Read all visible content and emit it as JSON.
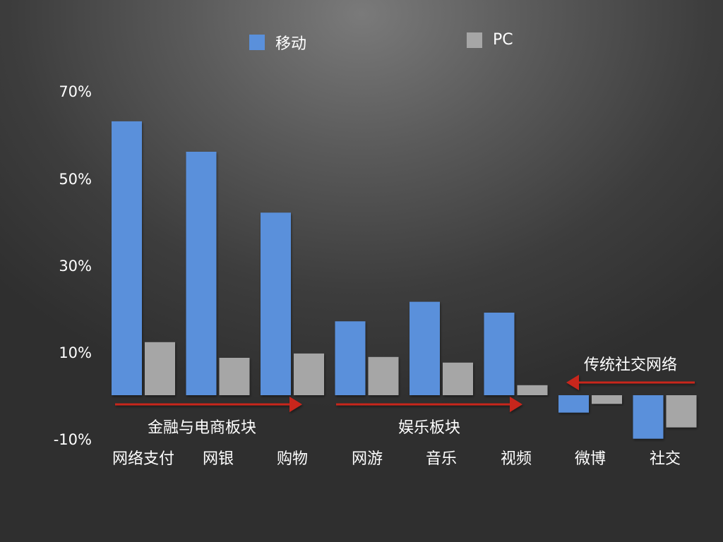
{
  "legend": {
    "mobile_label": "移动",
    "pc_label": "PC"
  },
  "colors": {
    "mobile": "#5a90db",
    "pc": "#a6a6a6",
    "arrow": "#c8281e",
    "axis": "#ffffff"
  },
  "annotations": {
    "finance": "金融与电商板块",
    "entertainment": "娱乐板块",
    "social": "传统社交网络"
  },
  "chart_data": {
    "type": "bar",
    "categories": [
      "网络支付",
      "网银",
      "购物",
      "网游",
      "音乐",
      "视频",
      "微博",
      "社交"
    ],
    "series": [
      {
        "name": "移动",
        "values": [
          63,
          56,
          42,
          17,
          21.5,
          19,
          -4,
          -10
        ]
      },
      {
        "name": "PC",
        "values": [
          12.2,
          8.6,
          9.6,
          8.8,
          7.5,
          2.3,
          -2,
          -7.4
        ]
      }
    ],
    "yticks": [
      "70%",
      "50%",
      "30%",
      "10%",
      "-10%"
    ],
    "ylim": [
      -10,
      70
    ],
    "grid": false,
    "legend": "top"
  }
}
